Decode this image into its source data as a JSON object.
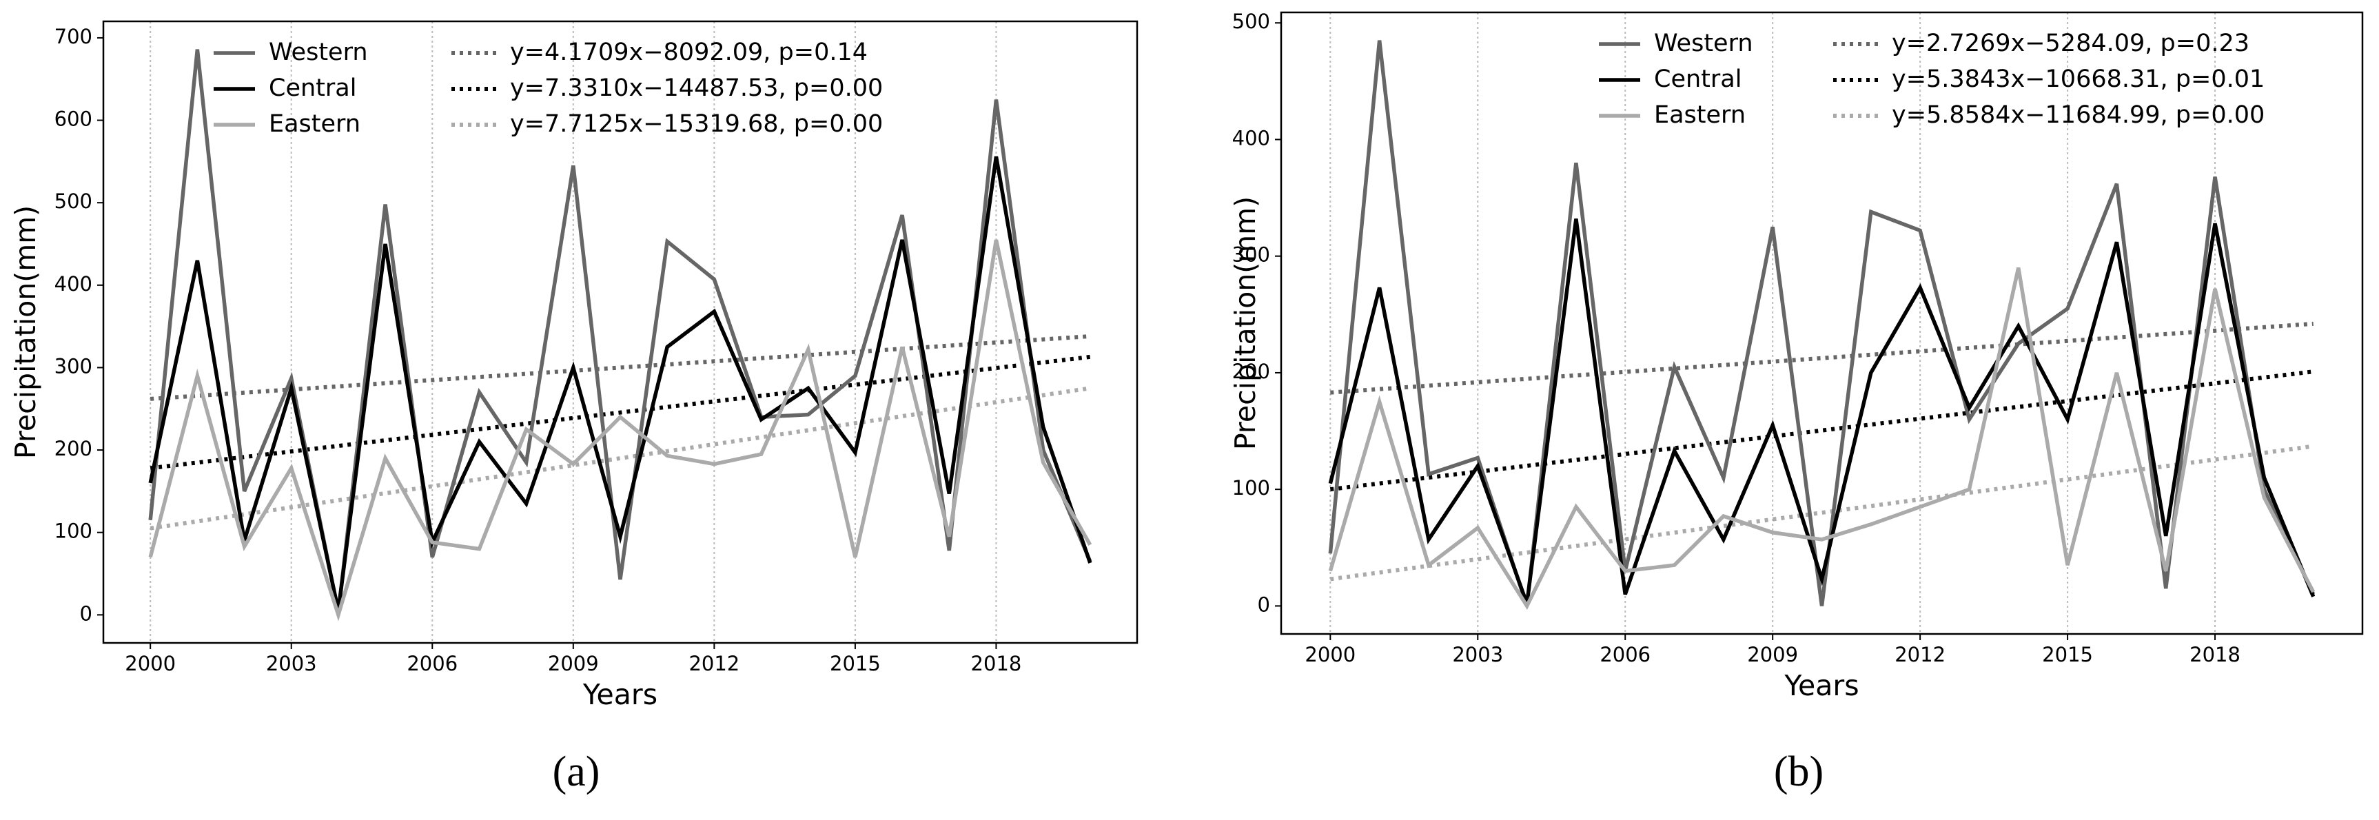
{
  "chart_data": [
    {
      "type": "line",
      "caption": "(a)",
      "xlabel": "Years",
      "ylabel": "Precipitation(mm)",
      "x": [
        2000,
        2001,
        2002,
        2003,
        2004,
        2005,
        2006,
        2007,
        2008,
        2009,
        2010,
        2011,
        2012,
        2013,
        2014,
        2015,
        2016,
        2017,
        2018,
        2019,
        2020
      ],
      "xlim": [
        1999,
        2021
      ],
      "xticks": [
        2000,
        2003,
        2006,
        2009,
        2012,
        2015,
        2018
      ],
      "ylim": [
        -34,
        720
      ],
      "yticks": [
        0,
        100,
        200,
        300,
        400,
        500,
        600,
        700
      ],
      "grid": true,
      "series": [
        {
          "name": "Western",
          "color": "#666666",
          "values": [
            115,
            686,
            150,
            287,
            3,
            498,
            70,
            270,
            185,
            545,
            43,
            453,
            407,
            240,
            243,
            290,
            485,
            78,
            625,
            200,
            65
          ]
        },
        {
          "name": "Central",
          "color": "#000000",
          "values": [
            160,
            430,
            90,
            275,
            5,
            450,
            88,
            210,
            135,
            300,
            95,
            325,
            368,
            237,
            275,
            197,
            455,
            147,
            556,
            228,
            63
          ]
        },
        {
          "name": "Eastern",
          "color": "#aaaaaa",
          "values": [
            70,
            290,
            83,
            178,
            0,
            190,
            88,
            80,
            225,
            183,
            240,
            193,
            183,
            195,
            322,
            70,
            325,
            95,
            455,
            185,
            85
          ]
        }
      ],
      "trends": [
        {
          "name": "y=4.1709x−8092.09, p=0.14",
          "color": "#666666",
          "x": [
            2000,
            2020
          ],
          "values": [
            262,
            338
          ]
        },
        {
          "name": "y=7.3310x−14487.53, p=0.00",
          "color": "#000000",
          "x": [
            2000,
            2020
          ],
          "values": [
            178,
            313
          ]
        },
        {
          "name": "y=7.7125x−15319.68, p=0.00",
          "color": "#aaaaaa",
          "x": [
            2000,
            2020
          ],
          "values": [
            105,
            275
          ]
        }
      ]
    },
    {
      "type": "line",
      "caption": "(b)",
      "xlabel": "Years",
      "ylabel": "Precipitation(mm)",
      "x": [
        2000,
        2001,
        2002,
        2003,
        2004,
        2005,
        2006,
        2007,
        2008,
        2009,
        2010,
        2011,
        2012,
        2013,
        2014,
        2015,
        2016,
        2017,
        2018,
        2019,
        2020
      ],
      "xlim": [
        1999,
        2021
      ],
      "xticks": [
        2000,
        2003,
        2006,
        2009,
        2012,
        2015,
        2018
      ],
      "ylim": [
        -24,
        509
      ],
      "yticks": [
        0,
        100,
        200,
        300,
        400,
        500
      ],
      "grid": true,
      "series": [
        {
          "name": "Western",
          "color": "#666666",
          "values": [
            45,
            485,
            113,
            127,
            0,
            380,
            30,
            205,
            110,
            325,
            0,
            338,
            322,
            160,
            225,
            255,
            362,
            15,
            368,
            100,
            10
          ]
        },
        {
          "name": "Central",
          "color": "#000000",
          "values": [
            105,
            273,
            57,
            120,
            2,
            332,
            10,
            133,
            57,
            155,
            23,
            200,
            273,
            170,
            240,
            160,
            312,
            60,
            328,
            110,
            8
          ]
        },
        {
          "name": "Eastern",
          "color": "#aaaaaa",
          "values": [
            30,
            175,
            35,
            67,
            0,
            85,
            30,
            35,
            77,
            63,
            57,
            70,
            85,
            100,
            290,
            35,
            200,
            30,
            272,
            93,
            12
          ]
        }
      ],
      "trends": [
        {
          "name": "y=2.7269x−5284.09, p=0.23",
          "color": "#666666",
          "x": [
            2000,
            2020
          ],
          "values": [
            183,
            242
          ]
        },
        {
          "name": "y=5.3843x−10668.31, p=0.01",
          "color": "#000000",
          "x": [
            2000,
            2020
          ],
          "values": [
            100,
            201
          ]
        },
        {
          "name": "y=5.8584x−11684.99, p=0.00",
          "color": "#aaaaaa",
          "x": [
            2000,
            2020
          ],
          "values": [
            23,
            137
          ]
        }
      ]
    }
  ]
}
